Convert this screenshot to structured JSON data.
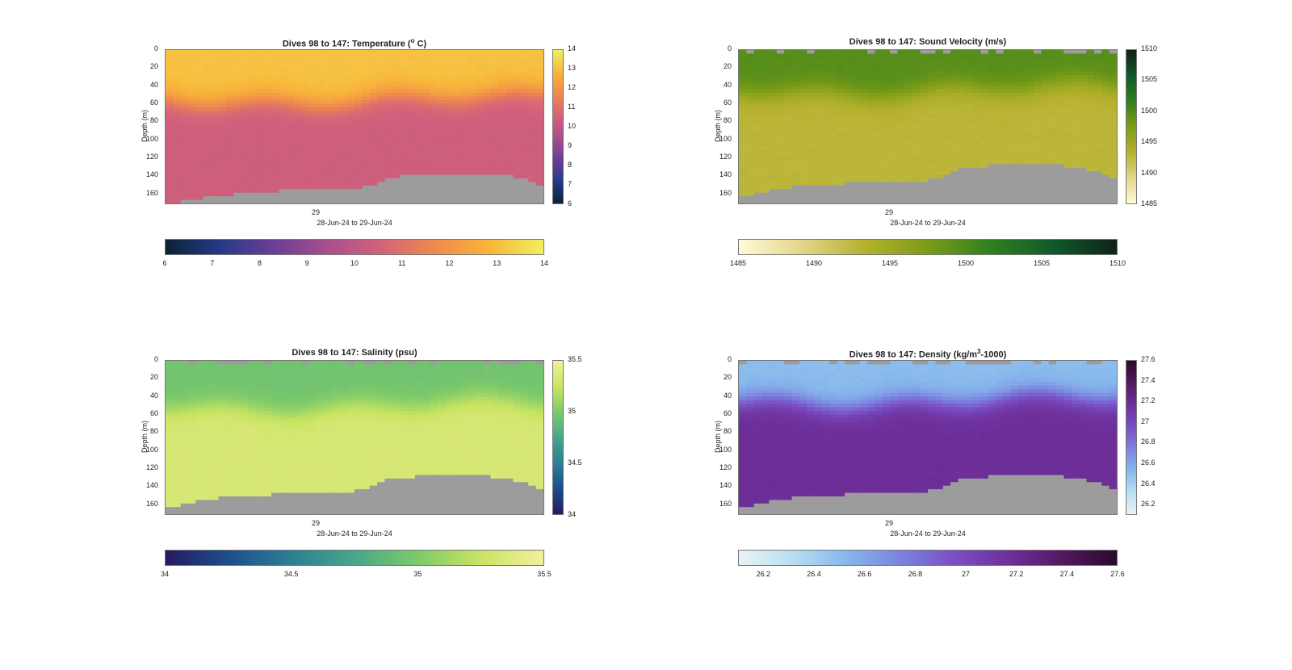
{
  "colors": {
    "missing": "#9c9c9c",
    "border": "#777777"
  },
  "chart_data": [
    {
      "type": "heatmap",
      "id": "temp",
      "title": "Dives 98 to 147: Temperature (o C)",
      "title_parts": [
        "Dives 98 to 147: Temperature (",
        "o",
        " C)"
      ],
      "ylabel": "Depth (m)",
      "xlabel": "28-Jun-24 to 29-Jun-24",
      "x_ticks": [
        "29"
      ],
      "y_ticks": [
        "0",
        "20",
        "40",
        "60",
        "80",
        "100",
        "120",
        "140",
        "160"
      ],
      "ylim": [
        0,
        172
      ],
      "clim": [
        6,
        14
      ],
      "colorbar_ticks": [
        "6",
        "7",
        "8",
        "9",
        "10",
        "11",
        "12",
        "13",
        "14"
      ],
      "colormap": [
        "#0b2236",
        "#253a86",
        "#6b3e96",
        "#a8508d",
        "#d4627a",
        "#f08a4d",
        "#f8b53a",
        "#f1f05f"
      ],
      "surface_value": 13.1,
      "thermocline_depth": 55,
      "deep_value": 10.4,
      "floor_profile": [
        172,
        171,
        169,
        168,
        166,
        165,
        164,
        163,
        162,
        161,
        160,
        160,
        159,
        158,
        158,
        157,
        157,
        156,
        156,
        155,
        155,
        155,
        154,
        154,
        154,
        154,
        153,
        150,
        147,
        144,
        142,
        141,
        141,
        140,
        140,
        139,
        139,
        139,
        138,
        138,
        138,
        138,
        139,
        139,
        140,
        141,
        143,
        145,
        147,
        150
      ]
    },
    {
      "type": "heatmap",
      "id": "sv",
      "title": "Dives 98 to 147: Sound Velocity (m/s)",
      "ylabel": "Depth (m)",
      "xlabel": "28-Jun-24 to 29-Jun-24",
      "x_ticks": [
        "29"
      ],
      "y_ticks": [
        "0",
        "20",
        "40",
        "60",
        "80",
        "100",
        "120",
        "140",
        "160"
      ],
      "ylim": [
        0,
        172
      ],
      "clim": [
        1485,
        1510
      ],
      "colorbar_ticks": [
        "1485",
        "1490",
        "1495",
        "1500",
        "1505",
        "1510"
      ],
      "colormap": [
        "#fffbd6",
        "#e3d58a",
        "#b5b12d",
        "#7b9c17",
        "#2f7f1f",
        "#0f5a2b",
        "#112218"
      ],
      "surface_value": 1499.5,
      "thermocline_depth": 45,
      "deep_value": 1492.8,
      "floor_profile": [
        165,
        162,
        160,
        158,
        156,
        155,
        154,
        153,
        152,
        152,
        151,
        150,
        150,
        150,
        149,
        149,
        149,
        148,
        148,
        148,
        147,
        147,
        147,
        147,
        146,
        145,
        142,
        138,
        135,
        132,
        130,
        130,
        130,
        129,
        129,
        128,
        128,
        128,
        128,
        128,
        128,
        129,
        129,
        130,
        131,
        133,
        135,
        137,
        140,
        143
      ]
    },
    {
      "type": "heatmap",
      "id": "sal",
      "title": "Dives 98 to 147: Salinity (psu)",
      "ylabel": "Depth (m)",
      "xlabel": "28-Jun-24 to 29-Jun-24",
      "x_ticks": [
        "29"
      ],
      "y_ticks": [
        "0",
        "20",
        "40",
        "60",
        "80",
        "100",
        "120",
        "140",
        "160"
      ],
      "ylim": [
        0,
        172
      ],
      "clim": [
        34,
        35.5
      ],
      "colorbar_ticks": [
        "34",
        "34.5",
        "35",
        "35.5"
      ],
      "colormap": [
        "#241a5e",
        "#1d4e8c",
        "#2d7f92",
        "#48a68a",
        "#7dca6a",
        "#c9e462",
        "#f4ee9c"
      ],
      "surface_value": 34.95,
      "thermocline_depth": 50,
      "deep_value": 35.33,
      "floor_profile": [
        165,
        162,
        160,
        158,
        156,
        155,
        154,
        153,
        152,
        152,
        151,
        150,
        150,
        150,
        149,
        149,
        149,
        148,
        148,
        148,
        147,
        147,
        147,
        147,
        146,
        145,
        142,
        138,
        135,
        132,
        130,
        130,
        130,
        129,
        129,
        128,
        128,
        128,
        128,
        128,
        128,
        129,
        129,
        130,
        131,
        133,
        135,
        137,
        140,
        143
      ]
    },
    {
      "type": "heatmap",
      "id": "dens",
      "title": "Dives 98 to 147: Density (kg/m3-1000)",
      "title_parts": [
        "Dives 98 to 147: Density (kg/m",
        "3",
        "-1000)"
      ],
      "ylabel": "Depth (m)",
      "xlabel": "28-Jun-24 to 29-Jun-24",
      "x_ticks": [
        "29"
      ],
      "y_ticks": [
        "0",
        "20",
        "40",
        "60",
        "80",
        "100",
        "120",
        "140",
        "160"
      ],
      "ylim": [
        0,
        172
      ],
      "clim": [
        26.1,
        27.6
      ],
      "colorbar_ticks": [
        "26.2",
        "26.4",
        "26.6",
        "26.8",
        "27",
        "27.2",
        "27.4",
        "27.6"
      ],
      "colorbar_tick_values": [
        26.2,
        26.4,
        26.6,
        26.8,
        27.0,
        27.2,
        27.4,
        27.6
      ],
      "colormap": [
        "#e9f3f4",
        "#b9def0",
        "#86b7ec",
        "#7b82de",
        "#7a4fc4",
        "#6e2f9a",
        "#52195f",
        "#2a0a2b"
      ],
      "surface_value": 26.5,
      "thermocline_depth": 45,
      "deep_value": 27.18,
      "floor_profile": [
        165,
        162,
        160,
        158,
        156,
        155,
        154,
        153,
        152,
        152,
        151,
        150,
        150,
        150,
        149,
        149,
        149,
        148,
        148,
        148,
        147,
        147,
        147,
        147,
        146,
        145,
        142,
        138,
        135,
        132,
        130,
        130,
        130,
        129,
        129,
        128,
        128,
        128,
        128,
        128,
        128,
        129,
        129,
        130,
        131,
        133,
        135,
        137,
        140,
        143
      ]
    }
  ]
}
